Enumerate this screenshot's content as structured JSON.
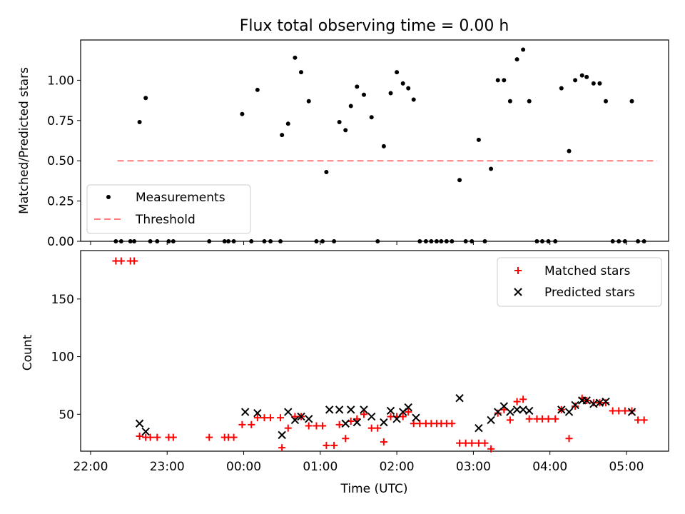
{
  "title": "Flux total observing time = 0.00 h",
  "colors": {
    "measurement": "#000000",
    "threshold": "#ff7f7f",
    "matched": "#ff0000",
    "predicted": "#000000"
  },
  "chart_data": [
    {
      "type": "scatter",
      "ylabel": "Matched/Predicted stars",
      "ylim": [
        0,
        1.25
      ],
      "xlim": [
        -2.13,
        5.55
      ],
      "yticks": [
        0,
        0.25,
        0.5,
        0.75,
        1.0
      ],
      "ytick_labels": [
        "0.00",
        "0.25",
        "0.50",
        "0.75",
        "1.00"
      ],
      "legend": {
        "position": "lower-left",
        "entries": [
          "Measurements",
          "Threshold"
        ]
      },
      "threshold": {
        "name": "Threshold",
        "y": 0.5,
        "x": [
          -1.65,
          5.4
        ]
      },
      "series": [
        {
          "name": "Measurements",
          "x": [
            -1.67,
            -1.6,
            -1.48,
            -1.43,
            -1.36,
            -1.28,
            -1.22,
            -1.13,
            -0.98,
            -0.92,
            -0.45,
            -0.25,
            -0.2,
            -0.13,
            -0.02,
            0.1,
            0.18,
            0.27,
            0.35,
            0.48,
            0.5,
            0.58,
            0.67,
            0.75,
            0.85,
            0.95,
            1.03,
            1.08,
            1.18,
            1.25,
            1.33,
            1.4,
            1.48,
            1.57,
            1.67,
            1.75,
            1.83,
            1.92,
            2.0,
            2.08,
            2.15,
            2.22,
            2.3,
            2.38,
            2.45,
            2.52,
            2.58,
            2.65,
            2.72,
            2.82,
            2.9,
            2.98,
            3.07,
            3.15,
            3.23,
            3.32,
            3.4,
            3.48,
            3.57,
            3.65,
            3.73,
            3.83,
            3.9,
            3.98,
            4.07,
            4.15,
            4.25,
            4.33,
            4.42,
            4.48,
            4.57,
            4.65,
            4.73,
            4.82,
            4.9,
            4.98,
            5.07,
            5.15,
            5.23
          ],
          "y": [
            0,
            0,
            0,
            0,
            0.74,
            0.89,
            0,
            0,
            0,
            0,
            0,
            0,
            0,
            0,
            0.79,
            0,
            0.94,
            0,
            0,
            0,
            0.66,
            0.73,
            1.14,
            1.05,
            0.87,
            0,
            0,
            0.43,
            0,
            0.74,
            0.69,
            0.84,
            0.96,
            0.91,
            0.77,
            0,
            0.59,
            0.92,
            1.05,
            0.98,
            0.95,
            0.88,
            0,
            0,
            0,
            0,
            0,
            0,
            0,
            0.38,
            0,
            0,
            0.63,
            0,
            0.45,
            1.0,
            1.0,
            0.87,
            1.13,
            1.19,
            0.87,
            0,
            0,
            0,
            0,
            0.95,
            0.56,
            1.0,
            1.03,
            1.02,
            0.98,
            0.98,
            0.87,
            0,
            0,
            0,
            0.87,
            0,
            0
          ]
        }
      ]
    },
    {
      "type": "scatter",
      "xlabel": "Time (UTC)",
      "ylabel": "Count",
      "ylim": [
        18,
        192
      ],
      "xlim": [
        -2.13,
        5.55
      ],
      "yticks": [
        50,
        100,
        150
      ],
      "ytick_labels": [
        "50",
        "100",
        "150"
      ],
      "xticks": [
        -2,
        -1,
        0,
        1,
        2,
        3,
        4,
        5
      ],
      "xtick_labels": [
        "22:00",
        "23:00",
        "00:00",
        "01:00",
        "02:00",
        "03:00",
        "04:00",
        "05:00"
      ],
      "legend": {
        "position": "upper-right",
        "entries": [
          "Matched stars",
          "Predicted stars"
        ]
      },
      "series": [
        {
          "name": "Matched stars",
          "x": [
            -1.67,
            -1.6,
            -1.48,
            -1.43,
            -1.36,
            -1.28,
            -1.22,
            -1.13,
            -0.98,
            -0.92,
            -0.45,
            -0.25,
            -0.2,
            -0.13,
            -0.02,
            0.1,
            0.18,
            0.27,
            0.35,
            0.48,
            0.5,
            0.58,
            0.67,
            0.75,
            0.85,
            0.95,
            1.03,
            1.08,
            1.18,
            1.25,
            1.33,
            1.4,
            1.48,
            1.57,
            1.67,
            1.75,
            1.83,
            1.92,
            2.0,
            2.08,
            2.15,
            2.22,
            2.3,
            2.38,
            2.45,
            2.52,
            2.58,
            2.65,
            2.72,
            2.82,
            2.9,
            2.98,
            3.07,
            3.15,
            3.23,
            3.32,
            3.4,
            3.48,
            3.57,
            3.65,
            3.73,
            3.83,
            3.9,
            3.98,
            4.07,
            4.15,
            4.25,
            4.33,
            4.42,
            4.48,
            4.57,
            4.65,
            4.73,
            4.82,
            4.9,
            4.98,
            5.07,
            5.15,
            5.23
          ],
          "y": [
            183,
            183,
            183,
            183,
            31,
            30,
            30,
            30,
            30,
            30,
            30,
            30,
            30,
            30,
            41,
            41,
            47,
            47,
            47,
            47,
            21,
            38,
            48,
            48,
            40,
            40,
            40,
            23,
            23,
            41,
            29,
            44,
            46,
            50,
            38,
            38,
            26,
            48,
            48,
            48,
            52,
            42,
            42,
            42,
            42,
            42,
            42,
            42,
            42,
            25,
            25,
            25,
            25,
            25,
            20,
            51,
            54,
            45,
            61,
            63,
            46,
            46,
            46,
            46,
            46,
            54,
            29,
            57,
            64,
            62,
            60,
            60,
            60,
            53,
            53,
            53,
            53,
            45,
            45
          ]
        },
        {
          "name": "Predicted stars",
          "x": [
            -1.36,
            -1.28,
            0.02,
            0.18,
            0.5,
            0.58,
            0.67,
            0.75,
            0.85,
            1.12,
            1.25,
            1.33,
            1.4,
            1.48,
            1.57,
            1.67,
            1.83,
            1.92,
            2.0,
            2.08,
            2.15,
            2.25,
            2.82,
            3.07,
            3.23,
            3.32,
            3.4,
            3.48,
            3.57,
            3.65,
            3.73,
            4.15,
            4.25,
            4.33,
            4.42,
            4.48,
            4.57,
            4.65,
            4.73,
            5.07
          ],
          "y": [
            42,
            35,
            52,
            51,
            32,
            52,
            45,
            48,
            46,
            54,
            54,
            42,
            54,
            43,
            54,
            48,
            43,
            53,
            46,
            52,
            56,
            47,
            64,
            38,
            45,
            52,
            57,
            52,
            54,
            54,
            53,
            54,
            52,
            58,
            62,
            62,
            59,
            60,
            61,
            52
          ]
        }
      ]
    }
  ]
}
